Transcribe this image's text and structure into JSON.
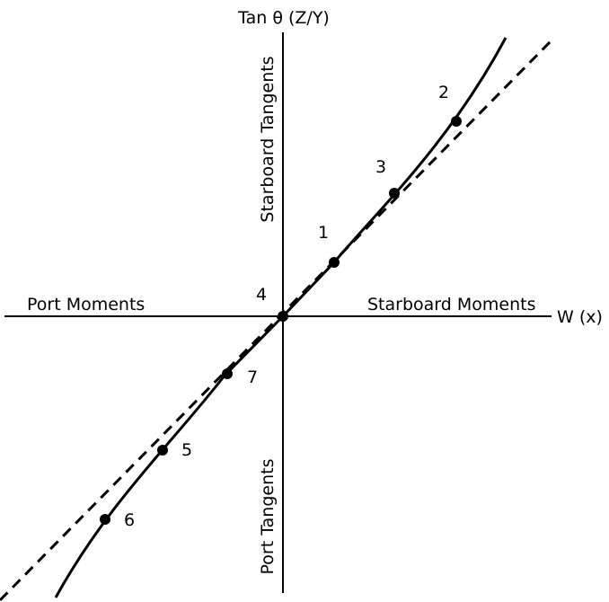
{
  "axes": {
    "vertical_title": "Tan θ (Z/Y)",
    "horizontal_title": "W (x)"
  },
  "quadrant_labels": {
    "left": "Port Moments",
    "right": "Starboard Moments",
    "top": "Starboard Tangents",
    "bottom": "Port Tangents"
  },
  "points": [
    {
      "label": "1"
    },
    {
      "label": "2"
    },
    {
      "label": "3"
    },
    {
      "label": "4"
    },
    {
      "label": "5"
    },
    {
      "label": "6"
    },
    {
      "label": "7"
    }
  ],
  "colors": {
    "line": "#000000",
    "background": "#ffffff"
  }
}
